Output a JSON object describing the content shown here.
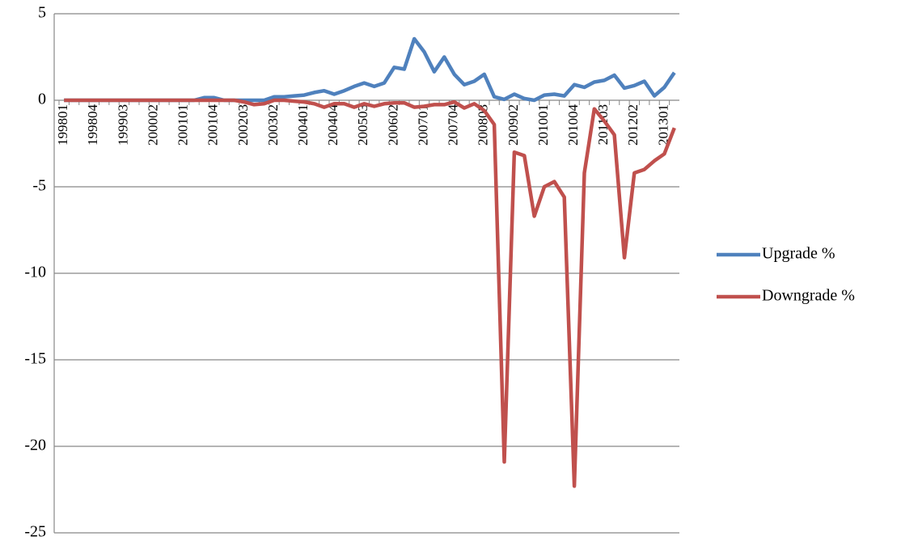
{
  "chart_data": {
    "type": "line",
    "categories": [
      "199801",
      null,
      null,
      "199804",
      null,
      null,
      "199903",
      null,
      null,
      "200002",
      null,
      null,
      "200101",
      null,
      null,
      "200104",
      null,
      null,
      "200203",
      null,
      null,
      "200302",
      null,
      null,
      "200401",
      null,
      null,
      "200404",
      null,
      null,
      "200503",
      null,
      null,
      "200602",
      null,
      null,
      "200701",
      null,
      null,
      "200704",
      null,
      null,
      "200803",
      null,
      null,
      "200902",
      null,
      null,
      "201001",
      null,
      null,
      "201004",
      null,
      null,
      "201103",
      null,
      null,
      "201202",
      null,
      null,
      "201301",
      null
    ],
    "series": [
      {
        "name": "Upgrade %",
        "color": "#4f81bd",
        "values": [
          0,
          0,
          0,
          0,
          0,
          0,
          0,
          0,
          0,
          0,
          0,
          0,
          0,
          0,
          0.15,
          0.15,
          0,
          0,
          0,
          0,
          0,
          0.2,
          0.2,
          0.25,
          0.3,
          0.45,
          0.55,
          0.35,
          0.55,
          0.8,
          1.0,
          0.8,
          1.0,
          1.9,
          1.8,
          3.55,
          2.8,
          1.65,
          2.5,
          1.5,
          0.9,
          1.1,
          1.5,
          0.2,
          0.05,
          0.35,
          0.1,
          0.0,
          0.3,
          0.35,
          0.25,
          0.9,
          0.75,
          1.05,
          1.15,
          1.45,
          0.7,
          0.85,
          1.1,
          0.25,
          0.75,
          1.6
        ]
      },
      {
        "name": "Downgrade %",
        "color": "#c0504d",
        "values": [
          0,
          0,
          0,
          0,
          0,
          0,
          0,
          0,
          0,
          0,
          0,
          0,
          0,
          0,
          0,
          0,
          0,
          0,
          -0.1,
          -0.25,
          -0.2,
          0,
          0,
          -0.05,
          -0.1,
          -0.2,
          -0.4,
          -0.2,
          -0.2,
          -0.4,
          -0.2,
          -0.35,
          -0.2,
          -0.15,
          -0.15,
          -0.4,
          -0.35,
          -0.25,
          -0.25,
          -0.1,
          -0.45,
          -0.2,
          -0.6,
          -1.4,
          -20.9,
          -3.0,
          -3.2,
          -6.7,
          -5.0,
          -4.7,
          -5.6,
          -22.3,
          -4.2,
          -0.5,
          -1.2,
          -2.0,
          -9.1,
          -4.2,
          -4.0,
          -3.5,
          -3.1,
          -1.6
        ]
      }
    ],
    "ylim": [
      -25,
      5
    ],
    "yticks": [
      -25,
      -20,
      -15,
      -10,
      -5,
      0,
      5
    ],
    "grid": true,
    "legend": "right"
  }
}
